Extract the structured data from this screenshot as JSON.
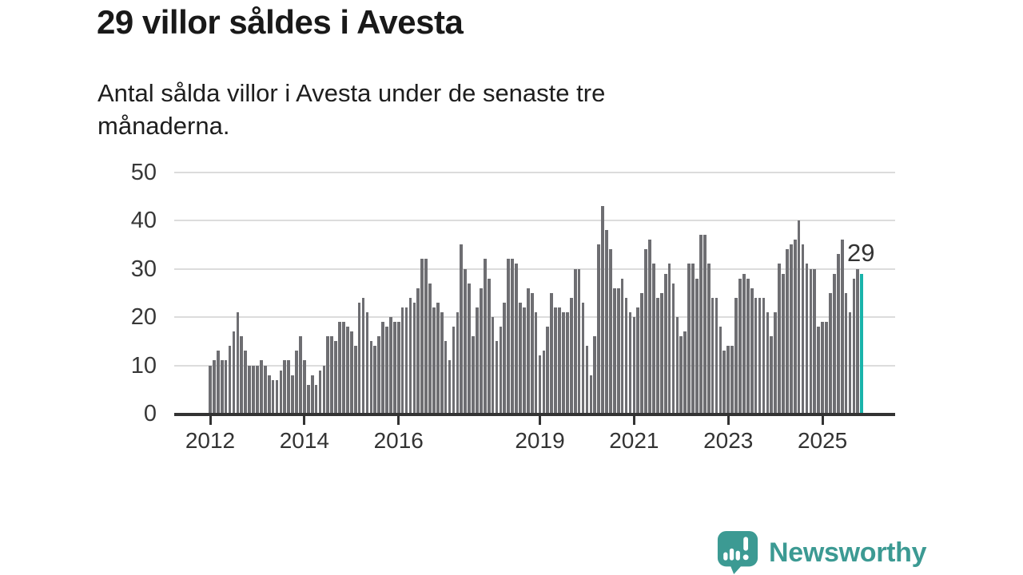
{
  "header": {
    "title": "29 villor såldes i Avesta",
    "subtitle": "Antal sålda villor i Avesta under de senaste tre\nmånaderna."
  },
  "annotation": {
    "last_value_label": "29"
  },
  "branding": {
    "logo_text": "Newsworthy",
    "logo_icon": "newsworthy-speech-bubble-bar-chart-icon",
    "logo_color": "#3c9a93"
  },
  "colors": {
    "bar": "#6e6e72",
    "highlight_bar": "#19b3aa",
    "gridline": "#dcdcdc",
    "axis": "#333333",
    "title_text": "#191919",
    "body_text": "#1e1e1e"
  },
  "chart_data": {
    "type": "bar",
    "title": "29 villor såldes i Avesta",
    "xlabel": "",
    "ylabel": "",
    "interval": "monthly",
    "x_start": "2012-01",
    "x_end": "2025-11",
    "ylim": [
      0,
      50
    ],
    "y_ticks": [
      0,
      10,
      20,
      30,
      40,
      50
    ],
    "x_tick_years": [
      "2012",
      "2014",
      "2016",
      "2019",
      "2021",
      "2023",
      "2025"
    ],
    "grid": "horizontal",
    "legend": "none",
    "highlight_last_bar": true,
    "highlight_last_value": 29,
    "values": [
      10,
      11,
      13,
      11,
      11,
      14,
      17,
      21,
      16,
      13,
      10,
      10,
      10,
      11,
      10,
      8,
      7,
      7,
      9,
      11,
      11,
      8,
      13,
      16,
      11,
      6,
      8,
      6,
      9,
      10,
      16,
      16,
      15,
      19,
      19,
      18,
      17,
      14,
      23,
      24,
      21,
      15,
      14,
      16,
      19,
      18,
      20,
      19,
      19,
      22,
      22,
      24,
      23,
      26,
      32,
      32,
      27,
      22,
      23,
      21,
      15,
      11,
      18,
      21,
      35,
      30,
      27,
      16,
      22,
      26,
      32,
      28,
      20,
      15,
      18,
      23,
      32,
      32,
      31,
      23,
      22,
      26,
      25,
      21,
      12,
      13,
      18,
      25,
      22,
      22,
      21,
      21,
      24,
      30,
      30,
      23,
      14,
      8,
      16,
      35,
      43,
      38,
      34,
      26,
      26,
      28,
      24,
      21,
      20,
      22,
      25,
      34,
      36,
      31,
      24,
      25,
      29,
      31,
      27,
      20,
      16,
      17,
      31,
      31,
      28,
      37,
      37,
      31,
      24,
      24,
      18,
      13,
      14,
      14,
      24,
      28,
      29,
      28,
      26,
      24,
      24,
      24,
      21,
      16,
      21,
      31,
      29,
      34,
      35,
      36,
      40,
      35,
      31,
      30,
      30,
      18,
      19,
      19,
      25,
      29,
      33,
      36,
      25,
      21,
      28,
      30,
      29
    ]
  }
}
